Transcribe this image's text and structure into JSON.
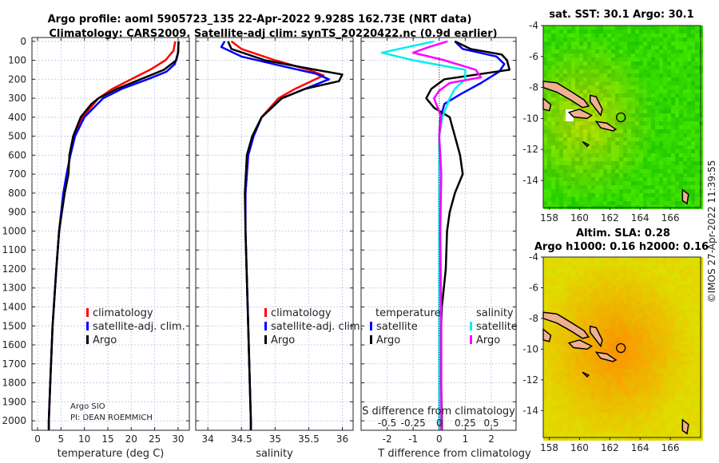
{
  "title_line1": "Argo profile: aoml 5905723_135 22-Apr-2022 9.928S 162.73E (NRT data)",
  "title_line2": "Climatology: CARS2009. Satellite-adj clim: synTS_20220422.nc (0.9d earlier)",
  "credit": "©IMOS 27-Apr-2022 11:39:55",
  "float_info": [
    "Argo SIO",
    "PI: DEAN ROEMMICH"
  ],
  "colors": {
    "climatology": "#ff0000",
    "satellite": "#0000ff",
    "argo": "#000000",
    "s_satellite": "#00eeee",
    "s_argo": "#ff00ff",
    "land": "#f0b090"
  },
  "chart_data": [
    {
      "type": "line",
      "name": "temperature",
      "xlabel": "temperature (deg C)",
      "ylabel": "",
      "xlim": [
        -1.2,
        32.4
      ],
      "ylim": [
        -20,
        2050
      ],
      "xticks": [
        0,
        5,
        10,
        15,
        20,
        25,
        30
      ],
      "yticks": [
        0,
        100,
        200,
        300,
        400,
        500,
        600,
        700,
        800,
        900,
        1000,
        1100,
        1200,
        1300,
        1400,
        1500,
        1600,
        1700,
        1800,
        1900,
        2000
      ],
      "legend": [
        "climatology",
        "satellite-adj. clim.",
        "Argo"
      ],
      "legend_position": "bottom-center",
      "series": [
        {
          "name": "climatology",
          "color": "#ff0000",
          "depth": [
            0,
            50,
            100,
            150,
            200,
            250,
            300,
            400,
            500,
            600,
            700,
            800,
            1000,
            1200,
            1500,
            1800,
            2000,
            2050
          ],
          "values": [
            29.4,
            29,
            27.3,
            24,
            20,
            16,
            13,
            9.6,
            8,
            7,
            6.2,
            5.5,
            4.6,
            4,
            3.2,
            2.7,
            2.4,
            2.4
          ]
        },
        {
          "name": "satellite-adj. clim.",
          "color": "#0000ff",
          "depth": [
            0,
            60,
            120,
            160,
            200,
            250,
            300,
            400,
            500,
            600,
            700,
            800,
            1000,
            1200,
            1500,
            1800,
            2000,
            2050
          ],
          "values": [
            30.1,
            30,
            29.3,
            27.5,
            23.5,
            18,
            14,
            10,
            8,
            7,
            6.2,
            5.5,
            4.6,
            4,
            3.2,
            2.7,
            2.4,
            2.4
          ]
        },
        {
          "name": "Argo",
          "color": "#000000",
          "depth": [
            0,
            60,
            100,
            150,
            200,
            250,
            300,
            330,
            400,
            500,
            600,
            700,
            800,
            900,
            1000,
            1200,
            1500,
            1800,
            2000,
            2050
          ],
          "values": [
            30.1,
            30,
            29.6,
            27,
            22,
            17,
            13,
            11.5,
            9.2,
            7.6,
            6.8,
            6.6,
            5.8,
            5.2,
            4.6,
            4,
            3.2,
            2.7,
            2.4,
            2.4
          ]
        }
      ]
    },
    {
      "type": "line",
      "name": "salinity",
      "xlabel": "salinity",
      "xlim": [
        33.82,
        36.16
      ],
      "ylim": [
        -20,
        2050
      ],
      "xticks": [
        34,
        34.5,
        35,
        35.5,
        36
      ],
      "legend": [
        "climatology",
        "satellite-adj. clim.",
        "Argo"
      ],
      "legend_position": "bottom-right",
      "series": [
        {
          "name": "climatology",
          "color": "#ff0000",
          "depth": [
            0,
            40,
            100,
            150,
            180,
            200,
            250,
            300,
            400,
            500,
            600,
            800,
            1000,
            1500,
            2000,
            2050
          ],
          "values": [
            34.35,
            34.5,
            35.0,
            35.5,
            35.72,
            35.6,
            35.3,
            35.05,
            34.8,
            34.68,
            34.6,
            34.56,
            34.56,
            34.6,
            34.64,
            34.64
          ]
        },
        {
          "name": "satellite-adj. clim.",
          "color": "#0000ff",
          "depth": [
            0,
            30,
            80,
            130,
            170,
            200,
            250,
            300,
            400,
            500,
            600,
            800,
            1000,
            1500,
            2000,
            2050
          ],
          "values": [
            34.25,
            34.2,
            34.5,
            35.1,
            35.6,
            35.8,
            35.45,
            35.1,
            34.8,
            34.68,
            34.6,
            34.56,
            34.56,
            34.6,
            34.64,
            34.64
          ]
        },
        {
          "name": "Argo",
          "color": "#000000",
          "depth": [
            0,
            40,
            100,
            150,
            175,
            210,
            250,
            300,
            350,
            400,
            500,
            600,
            800,
            1000,
            1500,
            2000,
            2050
          ],
          "values": [
            34.3,
            34.35,
            34.85,
            35.6,
            36.0,
            35.95,
            35.45,
            35.1,
            34.95,
            34.8,
            34.66,
            34.58,
            34.55,
            34.56,
            34.6,
            34.64,
            34.64
          ]
        }
      ]
    },
    {
      "type": "line",
      "name": "differences",
      "xlabel": "T difference from climatology",
      "x2label": "S difference from climatology",
      "xlim": [
        -3,
        2.95
      ],
      "x2lim": [
        -0.75,
        0.7375
      ],
      "ylim": [
        -20,
        2050
      ],
      "xticks": [
        -2,
        -1,
        0,
        1,
        2
      ],
      "x2ticks": [
        -0.5,
        -0.25,
        0,
        0.25,
        0.5
      ],
      "x2ticklabels": [
        "-0.5",
        "-0.25",
        "0",
        "0.25",
        "0.5"
      ],
      "legend_headers": [
        "temperature",
        "salinity"
      ],
      "legend": [
        "satellite",
        "Argo",
        "satellite",
        "Argo"
      ],
      "legend_position": "bottom",
      "series": [
        {
          "name": "T satellite",
          "axis": "T",
          "color": "#0000ff",
          "depth": [
            0,
            40,
            80,
            120,
            160,
            220,
            280,
            330,
            400,
            500,
            700,
            1000,
            1500,
            2000,
            2050
          ],
          "values": [
            0.6,
            0.9,
            2.2,
            2.5,
            2.3,
            1.6,
            0.8,
            0.2,
            0.05,
            0,
            0,
            0,
            0,
            0,
            0
          ]
        },
        {
          "name": "T Argo",
          "axis": "T",
          "color": "#000000",
          "depth": [
            0,
            40,
            70,
            100,
            150,
            200,
            250,
            300,
            350,
            400,
            450,
            500,
            600,
            700,
            800,
            900,
            1000,
            1200,
            1400,
            1600,
            2000,
            2050
          ],
          "values": [
            0.6,
            1.2,
            2.4,
            2.6,
            2.7,
            0.2,
            -0.3,
            -0.5,
            -0.2,
            0.4,
            0.5,
            0.6,
            0.8,
            0.9,
            0.6,
            0.4,
            0.3,
            0.25,
            0.1,
            0.05,
            0.1,
            0.1
          ]
        },
        {
          "name": "S satellite",
          "axis": "S",
          "color": "#00eeee",
          "depth": [
            0,
            30,
            60,
            100,
            150,
            200,
            250,
            300,
            400,
            500,
            700,
            1000,
            1500,
            2000,
            2050
          ],
          "values": [
            -0.05,
            -0.3,
            -0.55,
            -0.25,
            0.25,
            0.25,
            0.15,
            0.1,
            0.03,
            0,
            0,
            0,
            0,
            0,
            0
          ]
        },
        {
          "name": "S Argo",
          "axis": "S",
          "color": "#ff00ff",
          "depth": [
            0,
            30,
            60,
            100,
            150,
            190,
            220,
            260,
            300,
            400,
            500,
            700,
            1000,
            1500,
            2000,
            2050
          ],
          "values": [
            0.08,
            -0.1,
            -0.25,
            0.05,
            0.35,
            0.4,
            0.1,
            0.0,
            -0.05,
            0.02,
            0,
            0.02,
            0.01,
            0.02,
            0.02,
            0.02
          ]
        }
      ]
    },
    {
      "type": "heatmap",
      "name": "sst_map",
      "title": "sat. SST: 30.1 Argo: 30.1",
      "xlim": [
        157.6,
        168
      ],
      "ylim": [
        -15.75,
        -4
      ],
      "xticks": [
        158,
        160,
        162,
        164,
        166
      ],
      "yticks": [
        -4,
        -6,
        -8,
        -10,
        -12,
        -14
      ],
      "argo_position": [
        162.73,
        -9.928
      ]
    },
    {
      "type": "heatmap",
      "name": "sla_map",
      "title": "Altim. SLA: 0.28",
      "subtitle": "Argo h1000: 0.16 h2000: 0.16",
      "xlim": [
        157.6,
        168
      ],
      "ylim": [
        -15.75,
        -4
      ],
      "xticks": [
        158,
        160,
        162,
        164,
        166
      ],
      "yticks": [
        -4,
        -6,
        -8,
        -10,
        -12,
        -14
      ],
      "argo_position": [
        162.73,
        -9.928
      ]
    }
  ]
}
